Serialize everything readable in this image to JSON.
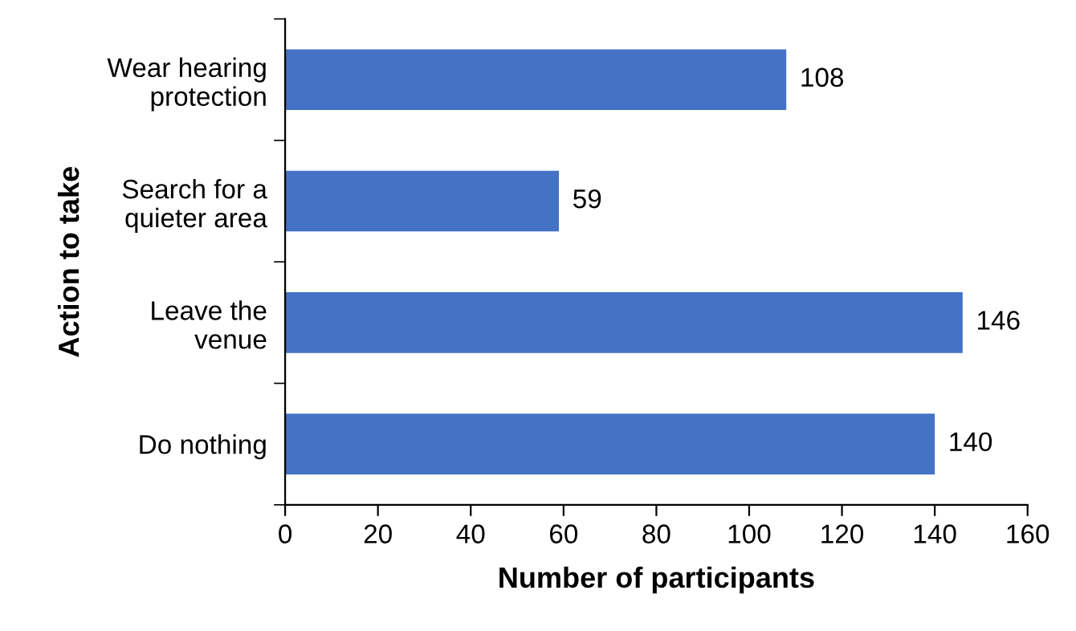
{
  "chart_data": {
    "type": "bar",
    "orientation": "horizontal",
    "xlabel": "Number of participants",
    "ylabel": "Action to take",
    "categories": [
      "Wear hearing\nprotection",
      "Search for a\nquieter area",
      "Leave the\nvenue",
      "Do nothing"
    ],
    "values": [
      108,
      59,
      146,
      140
    ],
    "color": "#4472c4",
    "xlim": [
      0,
      160
    ],
    "xticks": [
      0,
      20,
      40,
      60,
      80,
      100,
      120,
      140,
      160
    ],
    "grid": false,
    "data_labels": true
  }
}
